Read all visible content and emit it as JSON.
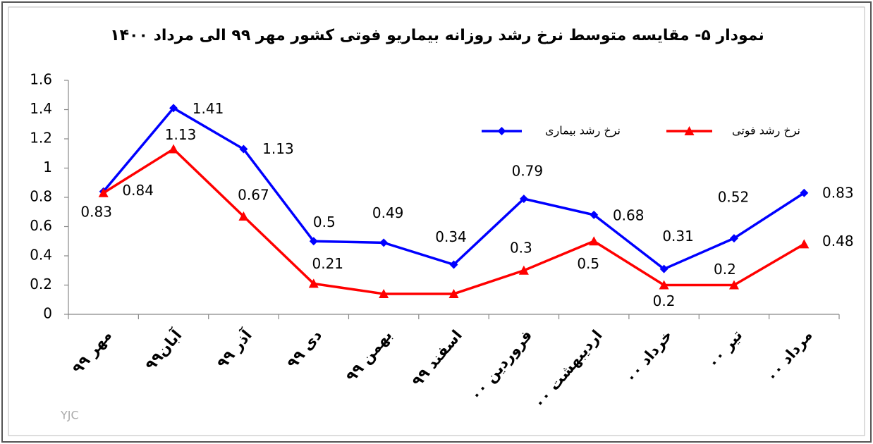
{
  "chart_data": {
    "type": "line",
    "title": "نمودار ۵- مقایسه متوسط نرخ رشد روزانه بیماریو فوتی کشور مهر ۹۹ الی مرداد ۱۴۰۰",
    "categories": [
      "مهر ۹۹",
      "آبان۹۹",
      "آذر ۹۹",
      "دی ۹۹",
      "بهمن ۹۹",
      "اسفند ۹۹",
      "فروردین ۰۰",
      "اردیبهشت ۰۰",
      "خرداد ۰۰",
      "تیر ۰۰",
      "مرداد ۰۰"
    ],
    "series": [
      {
        "name": "نرخ رشد بیماری",
        "color": "#0000ff",
        "marker": "diamond",
        "values": [
          0.84,
          1.41,
          1.13,
          0.5,
          0.49,
          0.34,
          0.79,
          0.68,
          0.31,
          0.52,
          0.83
        ]
      },
      {
        "name": "نرخ رشد فوتی",
        "color": "#ff0000",
        "marker": "triangle",
        "values": [
          0.83,
          1.13,
          0.67,
          0.21,
          0.14,
          0.14,
          0.3,
          0.5,
          0.2,
          0.2,
          0.48
        ],
        "value_labels": [
          "0.83",
          "1.13",
          "0.67",
          "0.21",
          null,
          null,
          "0.3",
          "0.5",
          "0.2",
          "0.2",
          "0.48"
        ]
      }
    ],
    "ylim": [
      0,
      1.6
    ],
    "yticks": [
      0,
      0.2,
      0.4,
      0.6,
      0.8,
      1,
      1.2,
      1.4,
      1.6
    ],
    "grid": false,
    "watermark": "YJC"
  }
}
